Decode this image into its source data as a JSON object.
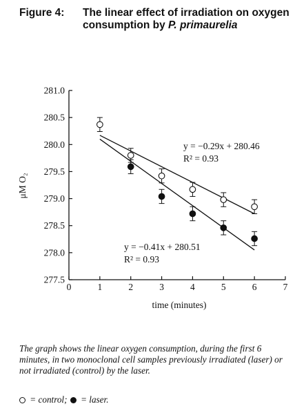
{
  "figure": {
    "number": "Figure 4:",
    "title_plain": "The linear effect of irradiation on oxygen consumption by ",
    "title_italic": "P. primaurelia"
  },
  "caption": "The graph shows the linear oxygen consumption, during the first 6 minutes, in two monoclonal cell samples previously irradiated (laser) or not irradiated (control) by the laser.",
  "legend": {
    "control_text": " = control;",
    "laser_text": " = laser."
  },
  "chart_data": {
    "type": "scatter",
    "xlabel": "time (minutes)",
    "ylabel": "μM O₂",
    "xlim": [
      0,
      7
    ],
    "ylim": [
      277.5,
      281.0
    ],
    "xticks": [
      0,
      1,
      2,
      3,
      4,
      5,
      6,
      7
    ],
    "yticks": [
      277.5,
      278.0,
      278.5,
      279.0,
      279.5,
      280.0,
      280.5,
      281.0
    ],
    "grid": false,
    "series": [
      {
        "name": "control",
        "marker": "open-circle",
        "x": [
          1,
          2,
          3,
          4,
          5,
          6
        ],
        "y": [
          280.37,
          279.8,
          279.42,
          279.17,
          278.98,
          278.85
        ],
        "err": [
          0.13,
          0.13,
          0.13,
          0.13,
          0.13,
          0.13
        ],
        "fit": {
          "slope": -0.29,
          "intercept": 280.46,
          "x_range": [
            1,
            6
          ]
        },
        "equation": "y = −0.29x + 280.46",
        "r2": "R² = 0.93"
      },
      {
        "name": "laser",
        "marker": "filled-circle",
        "x": [
          2,
          3,
          4,
          5,
          6
        ],
        "y": [
          279.59,
          279.04,
          278.72,
          278.46,
          278.26
        ],
        "err": [
          0.13,
          0.13,
          0.13,
          0.13,
          0.13
        ],
        "fit": {
          "slope": -0.41,
          "intercept": 280.51,
          "x_range": [
            1,
            6
          ]
        },
        "equation": "y = −0.41x + 280.51",
        "r2": "R² = 0.93"
      }
    ]
  }
}
